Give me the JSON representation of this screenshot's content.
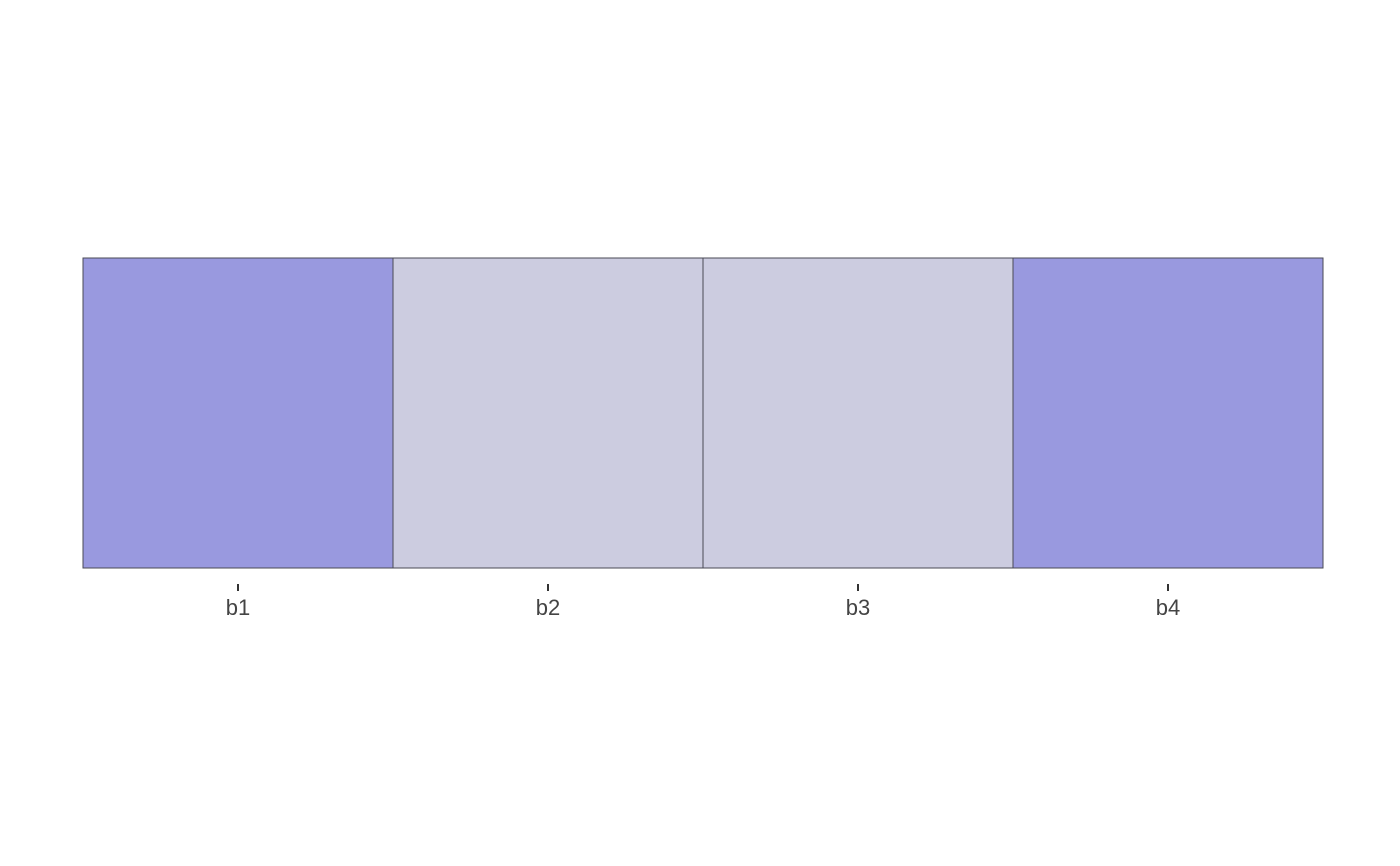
{
  "chart_data": {
    "type": "heatmap",
    "title": "",
    "xlabel": "",
    "ylabel": "",
    "x": [
      "b1",
      "b2",
      "b3",
      "b4"
    ],
    "rows": 1,
    "colors": {
      "b1": "#9999df",
      "b2": "#cccce0",
      "b3": "#cccce0",
      "b4": "#9999df"
    },
    "tile_border_color": "#4a4a55",
    "legend": "none",
    "grid": false
  }
}
